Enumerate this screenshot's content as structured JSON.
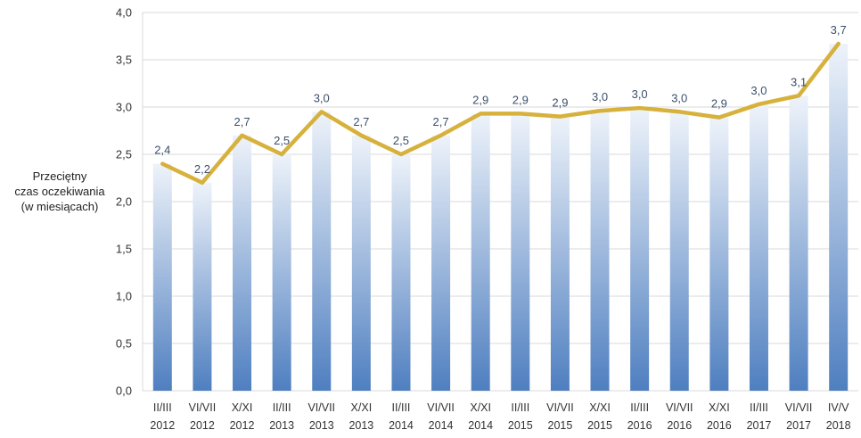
{
  "chart_data": {
    "type": "bar",
    "ylabel": [
      "Przeciętny",
      "czas oczekiwania",
      "(w miesiącach)"
    ],
    "ylim": [
      0,
      4
    ],
    "y_ticks": [
      "0,0",
      "0,5",
      "1,0",
      "1,5",
      "2,0",
      "2,5",
      "3,0",
      "3,5",
      "4,0"
    ],
    "grid": true,
    "categories": [
      [
        "II/III",
        "2012"
      ],
      [
        "VI/VII",
        "2012"
      ],
      [
        "X/XI",
        "2012"
      ],
      [
        "II/III",
        "2013"
      ],
      [
        "VI/VII",
        "2013"
      ],
      [
        "X/XI",
        "2013"
      ],
      [
        "II/III",
        "2014"
      ],
      [
        "VI/VII",
        "2014"
      ],
      [
        "X/XI",
        "2014"
      ],
      [
        "II/III",
        "2015"
      ],
      [
        "VI/VII",
        "2015"
      ],
      [
        "X/XI",
        "2015"
      ],
      [
        "II/III",
        "2016"
      ],
      [
        "VI/VII",
        "2016"
      ],
      [
        "X/XI",
        "2016"
      ],
      [
        "II/III",
        "2017"
      ],
      [
        "VI/VII",
        "2017"
      ],
      [
        "IV/V",
        "2018"
      ]
    ],
    "values": [
      2.4,
      2.2,
      2.7,
      2.5,
      2.95,
      2.7,
      2.5,
      2.7,
      2.93,
      2.93,
      2.9,
      2.96,
      2.99,
      2.95,
      2.89,
      3.03,
      3.12,
      3.67
    ],
    "data_labels": [
      "2,4",
      "2,2",
      "2,7",
      "2,5",
      "3,0",
      "2,7",
      "2,5",
      "2,7",
      "2,9",
      "2,9",
      "2,9",
      "3,0",
      "3,0",
      "3,0",
      "2,9",
      "3,0",
      "3,1",
      "3,7"
    ],
    "line_overlay": true,
    "colors": {
      "bar_top": "#eef3fa",
      "bar_bottom": "#4f7fc0",
      "line": "#d6b13c",
      "grid": "#d9d9d9",
      "label": "#3c4f6b"
    }
  }
}
